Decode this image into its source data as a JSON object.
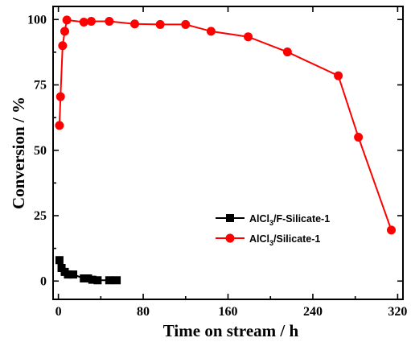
{
  "chart_data": {
    "type": "line",
    "xlabel": "Time on stream / h",
    "ylabel": "Conversion / %",
    "xlim": [
      -5,
      325
    ],
    "ylim": [
      -7,
      105
    ],
    "xticks": [
      0,
      80,
      160,
      240,
      320
    ],
    "yticks": [
      0,
      25,
      50,
      75,
      100
    ],
    "legend_position": "center-right",
    "series": [
      {
        "name": "AlCl3/F-Silicate-1",
        "name_main": "AlCl",
        "name_sub": "3",
        "name_rest": "/F-Silicate-1",
        "marker": "square",
        "color": "#000000",
        "x": [
          1,
          3,
          6,
          9,
          14,
          24,
          28,
          32,
          37,
          48,
          55
        ],
        "y": [
          8,
          5,
          3.5,
          2.5,
          2.5,
          1,
          1,
          0.5,
          0.3,
          0.3,
          0.3
        ]
      },
      {
        "name": "AlCl3/Silicate-1",
        "name_main": "AlCl",
        "name_sub": "3",
        "name_rest": "/Silicate-1",
        "marker": "circle",
        "color": "#ff0000",
        "x": [
          1,
          2,
          4,
          6,
          8,
          24,
          31,
          48,
          72,
          96,
          120,
          144,
          179,
          216,
          264,
          283,
          314
        ],
        "y": [
          59.5,
          70.5,
          90,
          95.5,
          99.8,
          99,
          99.3,
          99.3,
          98.3,
          98.1,
          98.1,
          95.5,
          93.4,
          87.6,
          78.5,
          55,
          19.5
        ]
      }
    ]
  }
}
